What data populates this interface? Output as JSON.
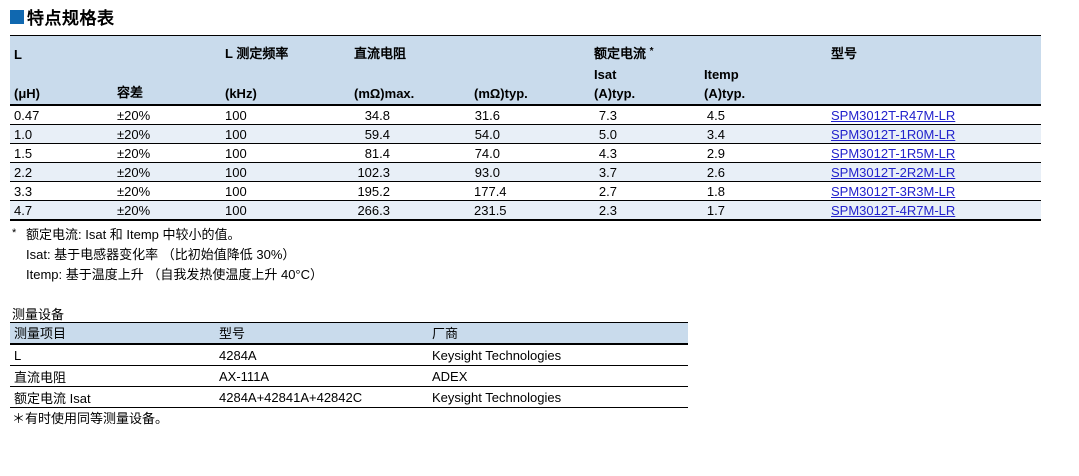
{
  "colors": {
    "brand_blue": "#1068b0",
    "table_header_bg": "#c9dbec",
    "row_stripe_bg": "#e8eff7",
    "link_blue": "#2222cc"
  },
  "section": {
    "title": "特点规格表"
  },
  "spec_table": {
    "header": {
      "l": "L",
      "l_unit": "(μH)",
      "tolerance": "容差",
      "freq": "L 测定频率",
      "freq_unit": "(kHz)",
      "dcr": "直流电阻",
      "dcr_max_unit": "(mΩ)max.",
      "dcr_typ_unit": "(mΩ)typ.",
      "rated_current": "额定电流",
      "rated_current_mark": "*",
      "isat": "Isat",
      "itemp": "Itemp",
      "isat_unit": "(A)typ.",
      "itemp_unit": "(A)typ.",
      "part_no": "型号"
    },
    "rows": [
      {
        "l": "0.47",
        "tolerance": "±20%",
        "freq": "100",
        "dcr_max": "34.8",
        "dcr_typ": "31.6",
        "isat": "7.3",
        "itemp": "4.5",
        "part": "SPM3012T-R47M-LR"
      },
      {
        "l": "1.0",
        "tolerance": "±20%",
        "freq": "100",
        "dcr_max": "59.4",
        "dcr_typ": "54.0",
        "isat": "5.0",
        "itemp": "3.4",
        "part": "SPM3012T-1R0M-LR"
      },
      {
        "l": "1.5",
        "tolerance": "±20%",
        "freq": "100",
        "dcr_max": "81.4",
        "dcr_typ": "74.0",
        "isat": "4.3",
        "itemp": "2.9",
        "part": "SPM3012T-1R5M-LR"
      },
      {
        "l": "2.2",
        "tolerance": "±20%",
        "freq": "100",
        "dcr_max": "102.3",
        "dcr_typ": "93.0",
        "isat": "3.7",
        "itemp": "2.6",
        "part": "SPM3012T-2R2M-LR"
      },
      {
        "l": "3.3",
        "tolerance": "±20%",
        "freq": "100",
        "dcr_max": "195.2",
        "dcr_typ": "177.4",
        "isat": "2.7",
        "itemp": "1.8",
        "part": "SPM3012T-3R3M-LR"
      },
      {
        "l": "4.7",
        "tolerance": "±20%",
        "freq": "100",
        "dcr_max": "266.3",
        "dcr_typ": "231.5",
        "isat": "2.3",
        "itemp": "1.7",
        "part": "SPM3012T-4R7M-LR"
      }
    ],
    "notes": {
      "mark": "*",
      "line1": "额定电流: Isat 和 Itemp 中较小的值。",
      "line2": "Isat: 基于电感器变化率 （比初始值降低 30%）",
      "line3": "Itemp: 基于温度上升 （自我发热使温度上升 40°C）"
    }
  },
  "equipment": {
    "heading": "测量设备",
    "header": {
      "item": "测量项目",
      "model": "型号",
      "vendor": "厂商"
    },
    "rows": [
      {
        "item": "L",
        "model": "4284A",
        "vendor": "Keysight Technologies"
      },
      {
        "item": "直流电阻",
        "model": "AX-111A",
        "vendor": "ADEX"
      },
      {
        "item": "额定电流 Isat",
        "model": "4284A+42841A+42842C",
        "vendor": "Keysight Technologies"
      }
    ],
    "note": "＊有时使用同等测量设备。"
  }
}
